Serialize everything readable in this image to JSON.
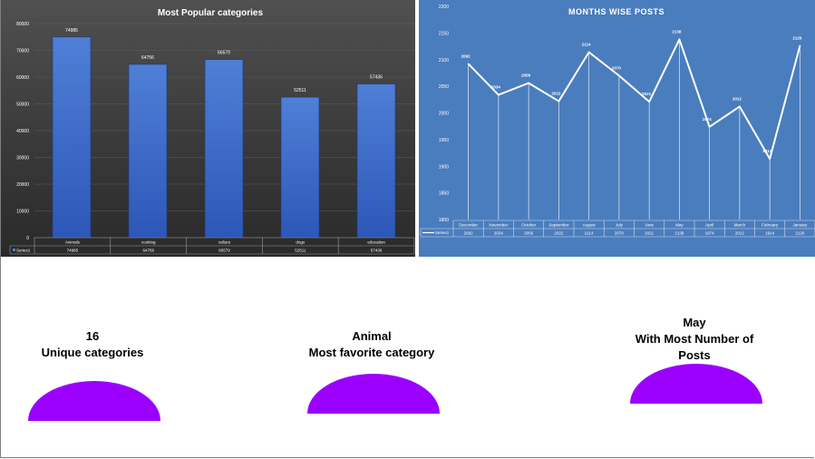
{
  "chart_data": [
    {
      "type": "bar",
      "title": "Most Popular categories",
      "categories": [
        "Animals",
        "cooking",
        "culture",
        "dogs",
        "education"
      ],
      "series": [
        {
          "name": "Series1",
          "values": [
            74985,
            64756,
            66579,
            52511,
            57436
          ]
        }
      ],
      "data_labels": [
        "74985",
        "64756",
        "66579",
        "52511",
        "57436"
      ],
      "yticks": [
        "0",
        "10000",
        "20000",
        "30000",
        "40000",
        "50000",
        "60000",
        "70000",
        "80000"
      ],
      "ylim": [
        0,
        80000
      ],
      "data_table": true,
      "grid": true,
      "colors": {
        "bar_top": "#4f7fd6",
        "bar_bottom": "#2d57b8",
        "text": "#ffffff"
      }
    },
    {
      "type": "line",
      "title": "MONTHS WISE POSTS",
      "categories": [
        "December",
        "November",
        "October",
        "September",
        "August",
        "July",
        "June",
        "May",
        "April",
        "March",
        "February",
        "January"
      ],
      "series": [
        {
          "name": "Series1",
          "values": [
            2092,
            2034,
            2056,
            2022,
            2114,
            2070,
            2021,
            2138,
            1974,
            2012,
            1914,
            2126
          ]
        }
      ],
      "data_labels": [
        "2092",
        "2034",
        "2056",
        "2022",
        "2114",
        "2070",
        "2021",
        "2138",
        "1974",
        "2012",
        "1914",
        "2126"
      ],
      "yticks": [
        "1800",
        "1850",
        "1900",
        "1950",
        "2000",
        "2050",
        "2100",
        "2150",
        "2200"
      ],
      "ylim": [
        1800,
        2200
      ],
      "data_table": true,
      "grid": true,
      "colors": {
        "background": "#4a7dbd",
        "line": "#ffffff"
      }
    }
  ],
  "stats": [
    {
      "value": "16",
      "label": "Unique categories"
    },
    {
      "value": "Animal",
      "label": "Most favorite category"
    },
    {
      "value": "May",
      "label": "With Most Number of Posts"
    }
  ],
  "colors": {
    "semicircle": "#9b00ff"
  }
}
